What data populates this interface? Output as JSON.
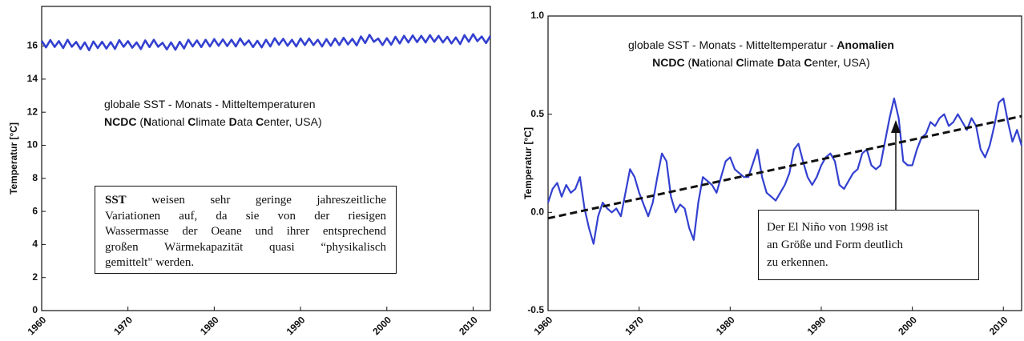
{
  "chart_data": [
    {
      "type": "line",
      "ylabel": "Temperatur [°C]",
      "color": "#3340d0",
      "xlim": [
        1960,
        2012
      ],
      "xticks": [
        1960,
        1970,
        1980,
        1990,
        2000,
        2010
      ],
      "ylim": [
        0,
        18.4
      ],
      "yticks": [
        0,
        2,
        4,
        6,
        8,
        10,
        12,
        14,
        16
      ],
      "annotation": [
        [
          {
            "text": "globale SST - Monats - Mitteltemperaturen"
          }
        ],
        [
          {
            "text": "NCDC",
            "bold": true
          },
          {
            "text": " ("
          },
          {
            "text": "N",
            "bold": true
          },
          {
            "text": "ational "
          },
          {
            "text": "C",
            "bold": true
          },
          {
            "text": "limate "
          },
          {
            "text": "D",
            "bold": true
          },
          {
            "text": "ata "
          },
          {
            "text": "C",
            "bold": true
          },
          {
            "text": "enter, USA)"
          }
        ]
      ],
      "note": {
        "justify": true,
        "lines": [
          [
            {
              "text": "SST",
              "bold": true
            },
            {
              "text": " weisen sehr geringe jahreszeitliche"
            }
          ],
          [
            {
              "text": "Variationen auf, da sie von der riesigen"
            }
          ],
          [
            {
              "text": "Wassermasse der Oeane und ihrer entsprechend"
            }
          ],
          [
            {
              "text": "großen Wärmekapazität quasi “physikalisch"
            }
          ],
          [
            {
              "text": "gemittelt\" werden."
            }
          ]
        ]
      },
      "x": [
        1960,
        1960.5,
        1961,
        1961.5,
        1962,
        1962.5,
        1963,
        1963.5,
        1964,
        1964.5,
        1965,
        1965.5,
        1966,
        1966.5,
        1967,
        1967.5,
        1968,
        1968.5,
        1969,
        1969.5,
        1970,
        1970.5,
        1971,
        1971.5,
        1972,
        1972.5,
        1973,
        1973.5,
        1974,
        1974.5,
        1975,
        1975.5,
        1976,
        1976.5,
        1977,
        1977.5,
        1978,
        1978.5,
        1979,
        1979.5,
        1980,
        1980.5,
        1981,
        1981.5,
        1982,
        1982.5,
        1983,
        1983.5,
        1984,
        1984.5,
        1985,
        1985.5,
        1986,
        1986.5,
        1987,
        1987.5,
        1988,
        1988.5,
        1989,
        1989.5,
        1990,
        1990.5,
        1991,
        1991.5,
        1992,
        1992.5,
        1993,
        1993.5,
        1994,
        1994.5,
        1995,
        1995.5,
        1996,
        1996.5,
        1997,
        1997.5,
        1998,
        1998.5,
        1999,
        1999.5,
        2000,
        2000.5,
        2001,
        2001.5,
        2002,
        2002.5,
        2003,
        2003.5,
        2004,
        2004.5,
        2005,
        2005.5,
        2006,
        2006.5,
        2007,
        2007.5,
        2008,
        2008.5,
        2009,
        2009.5,
        2010,
        2010.5,
        2011,
        2011.5,
        2012
      ],
      "values": [
        16.32,
        15.92,
        16.36,
        15.95,
        16.3,
        15.88,
        16.38,
        15.96,
        16.25,
        15.82,
        16.22,
        15.75,
        16.28,
        15.88,
        16.26,
        15.85,
        16.24,
        15.83,
        16.36,
        15.96,
        16.3,
        15.9,
        16.22,
        15.82,
        16.34,
        15.94,
        16.38,
        15.96,
        16.2,
        15.8,
        16.22,
        15.78,
        16.26,
        15.86,
        16.38,
        15.98,
        16.34,
        15.94,
        16.38,
        15.98,
        16.42,
        16.02,
        16.4,
        16.0,
        16.38,
        15.98,
        16.46,
        16.06,
        16.34,
        15.94,
        16.32,
        15.92,
        16.38,
        15.98,
        16.48,
        16.08,
        16.44,
        16.02,
        16.38,
        15.98,
        16.46,
        16.06,
        16.46,
        16.06,
        16.38,
        15.98,
        16.42,
        16.02,
        16.46,
        16.06,
        16.5,
        16.1,
        16.44,
        16.04,
        16.58,
        16.18,
        16.68,
        16.26,
        16.46,
        16.06,
        16.48,
        16.08,
        16.56,
        16.16,
        16.62,
        16.22,
        16.64,
        16.24,
        16.62,
        16.22,
        16.66,
        16.26,
        16.62,
        16.22,
        16.56,
        16.16,
        16.52,
        16.12,
        16.66,
        16.26,
        16.72,
        16.3,
        16.58,
        16.18,
        16.62
      ]
    },
    {
      "type": "line",
      "ylabel": "Temperatur [°C]",
      "color": "#3340d0",
      "xlim": [
        1960,
        2012
      ],
      "xticks": [
        1960,
        1970,
        1980,
        1990,
        2000,
        2010
      ],
      "ylim": [
        -0.5,
        1.0
      ],
      "yticks": [
        -0.5,
        {
          "value": 0,
          "label": "0.0"
        },
        0.5,
        {
          "value": 1,
          "label": "1.0"
        }
      ],
      "annotation": [
        [
          {
            "text": "globale SST - Monats - Mitteltemperatur - "
          },
          {
            "text": "Anomalien",
            "bold": true
          }
        ],
        [
          {
            "text": "NCDC",
            "bold": true
          },
          {
            "text": " ("
          },
          {
            "text": "N",
            "bold": true
          },
          {
            "text": "ational "
          },
          {
            "text": "C",
            "bold": true
          },
          {
            "text": "limate "
          },
          {
            "text": "D",
            "bold": true
          },
          {
            "text": "ata "
          },
          {
            "text": "C",
            "bold": true
          },
          {
            "text": "enter, USA)"
          }
        ]
      ],
      "note": {
        "justify": false,
        "lines": [
          [
            {
              "text": "Der  El Niño von 1998 ist"
            }
          ],
          [
            {
              "text": "an Größe und Form deutlich"
            }
          ],
          [
            {
              "text": "zu erkennen."
            }
          ]
        ]
      },
      "trend": {
        "x": [
          1960,
          2012
        ],
        "values": [
          -0.03,
          0.49
        ],
        "color": "#111111",
        "dashed": true
      },
      "x": [
        1960,
        1960.5,
        1961,
        1961.5,
        1962,
        1962.5,
        1963,
        1963.5,
        1964,
        1964.5,
        1965,
        1965.5,
        1966,
        1966.5,
        1967,
        1967.5,
        1968,
        1968.5,
        1969,
        1969.5,
        1970,
        1970.5,
        1971,
        1971.5,
        1972,
        1972.5,
        1973,
        1973.5,
        1974,
        1974.5,
        1975,
        1975.5,
        1976,
        1976.5,
        1977,
        1977.5,
        1978,
        1978.5,
        1979,
        1979.5,
        1980,
        1980.5,
        1981,
        1981.5,
        1982,
        1982.5,
        1983,
        1983.5,
        1984,
        1984.5,
        1985,
        1985.5,
        1986,
        1986.5,
        1987,
        1987.5,
        1988,
        1988.5,
        1989,
        1989.5,
        1990,
        1990.5,
        1991,
        1991.5,
        1992,
        1992.5,
        1993,
        1993.5,
        1994,
        1994.5,
        1995,
        1995.5,
        1996,
        1996.5,
        1997,
        1997.5,
        1998,
        1998.5,
        1999,
        1999.5,
        2000,
        2000.5,
        2001,
        2001.5,
        2002,
        2002.5,
        2003,
        2003.5,
        2004,
        2004.5,
        2005,
        2005.5,
        2006,
        2006.5,
        2007,
        2007.5,
        2008,
        2008.5,
        2009,
        2009.5,
        2010,
        2010.5,
        2011,
        2011.5,
        2012
      ],
      "values": [
        0.05,
        0.12,
        0.15,
        0.08,
        0.14,
        0.1,
        0.12,
        0.18,
        0.02,
        -0.08,
        -0.16,
        -0.02,
        0.05,
        0.02,
        0.0,
        0.02,
        -0.02,
        0.1,
        0.22,
        0.18,
        0.1,
        0.04,
        -0.02,
        0.05,
        0.18,
        0.3,
        0.26,
        0.08,
        0.0,
        0.04,
        0.02,
        -0.08,
        -0.14,
        0.05,
        0.18,
        0.16,
        0.14,
        0.1,
        0.18,
        0.26,
        0.28,
        0.22,
        0.2,
        0.18,
        0.18,
        0.25,
        0.32,
        0.18,
        0.1,
        0.08,
        0.06,
        0.1,
        0.14,
        0.2,
        0.32,
        0.35,
        0.26,
        0.18,
        0.14,
        0.18,
        0.24,
        0.28,
        0.3,
        0.26,
        0.14,
        0.12,
        0.16,
        0.2,
        0.22,
        0.3,
        0.32,
        0.24,
        0.22,
        0.24,
        0.36,
        0.48,
        0.58,
        0.48,
        0.26,
        0.24,
        0.24,
        0.32,
        0.38,
        0.4,
        0.46,
        0.44,
        0.48,
        0.5,
        0.44,
        0.46,
        0.5,
        0.46,
        0.42,
        0.48,
        0.44,
        0.32,
        0.28,
        0.34,
        0.44,
        0.56,
        0.58,
        0.46,
        0.36,
        0.42,
        0.34
      ]
    }
  ]
}
